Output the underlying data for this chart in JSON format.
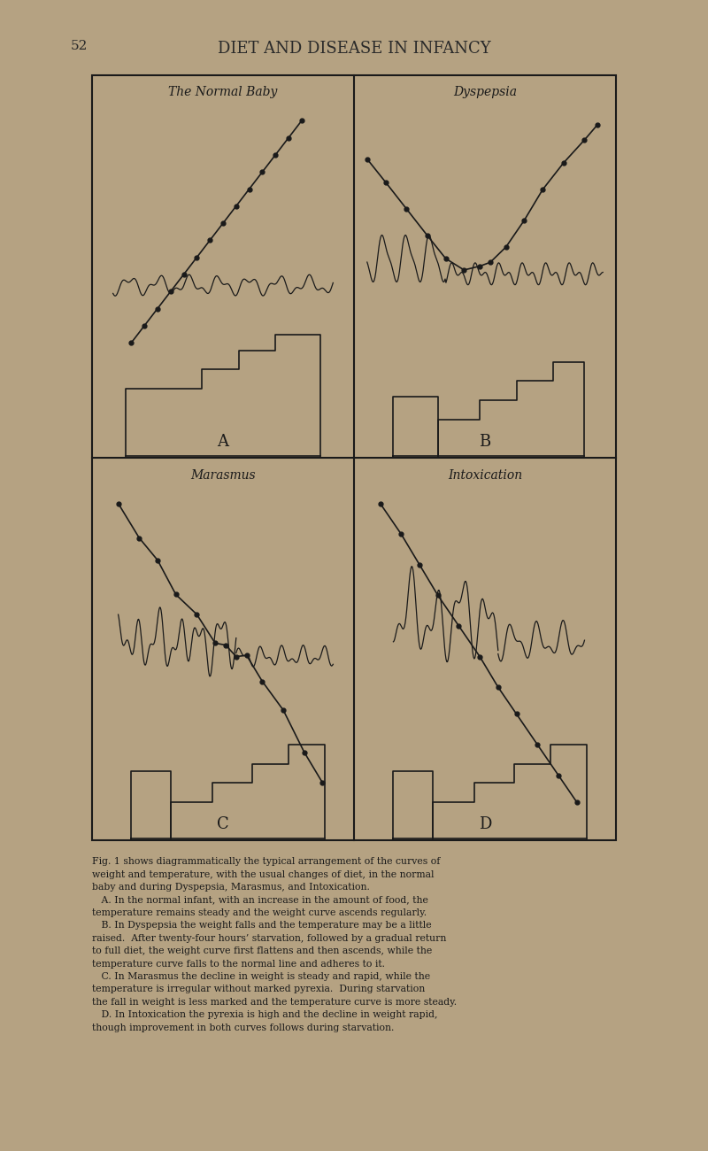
{
  "bg_color": "#b5a282",
  "title_page": "DIET AND DISEASE IN INFANCY",
  "page_num": "52",
  "panel_titles": [
    "The Normal Baby",
    "Dyspepsia",
    "Marasmus",
    "Intoxication"
  ],
  "panel_labels": [
    "A",
    "B",
    "C",
    "D"
  ],
  "line_color": "#1a1a1a",
  "caption_line1": "Fig. 1 shows diagrammatically the typical arrangement of the curves of",
  "caption_line2": "weight and temperature, with the usual changes of diet, in the normal",
  "caption_line3": "baby and during Dyspepsia, Marasmus, and Intoxication.",
  "caption_line4": "   A. In the normal infant, with an increase in the amount of food, the",
  "caption_line5": "temperature remains steady and the weight curve ascends regularly.",
  "caption_line6": "   B. In Dyspepsia the weight falls and the temperature may be a little",
  "caption_line7": "raised.  After twenty-four hours’ starvation, followed by a gradual return",
  "caption_line8": "to full diet, the weight curve first flattens and then ascends, while the",
  "caption_line9": "temperature curve falls to the normal line and adheres to it.",
  "caption_line10": "   C. In Marasmus the decline in weight is steady and rapid, while the",
  "caption_line11": "temperature is irregular without marked pyrexia.  During starvation",
  "caption_line12": "the fall in weight is less marked and the temperature curve is more steady.",
  "caption_line13": "   D. In Intoxication the pyrexia is high and the decline in weight rapid,",
  "caption_line14": "though improvement in both curves follows during starvation."
}
